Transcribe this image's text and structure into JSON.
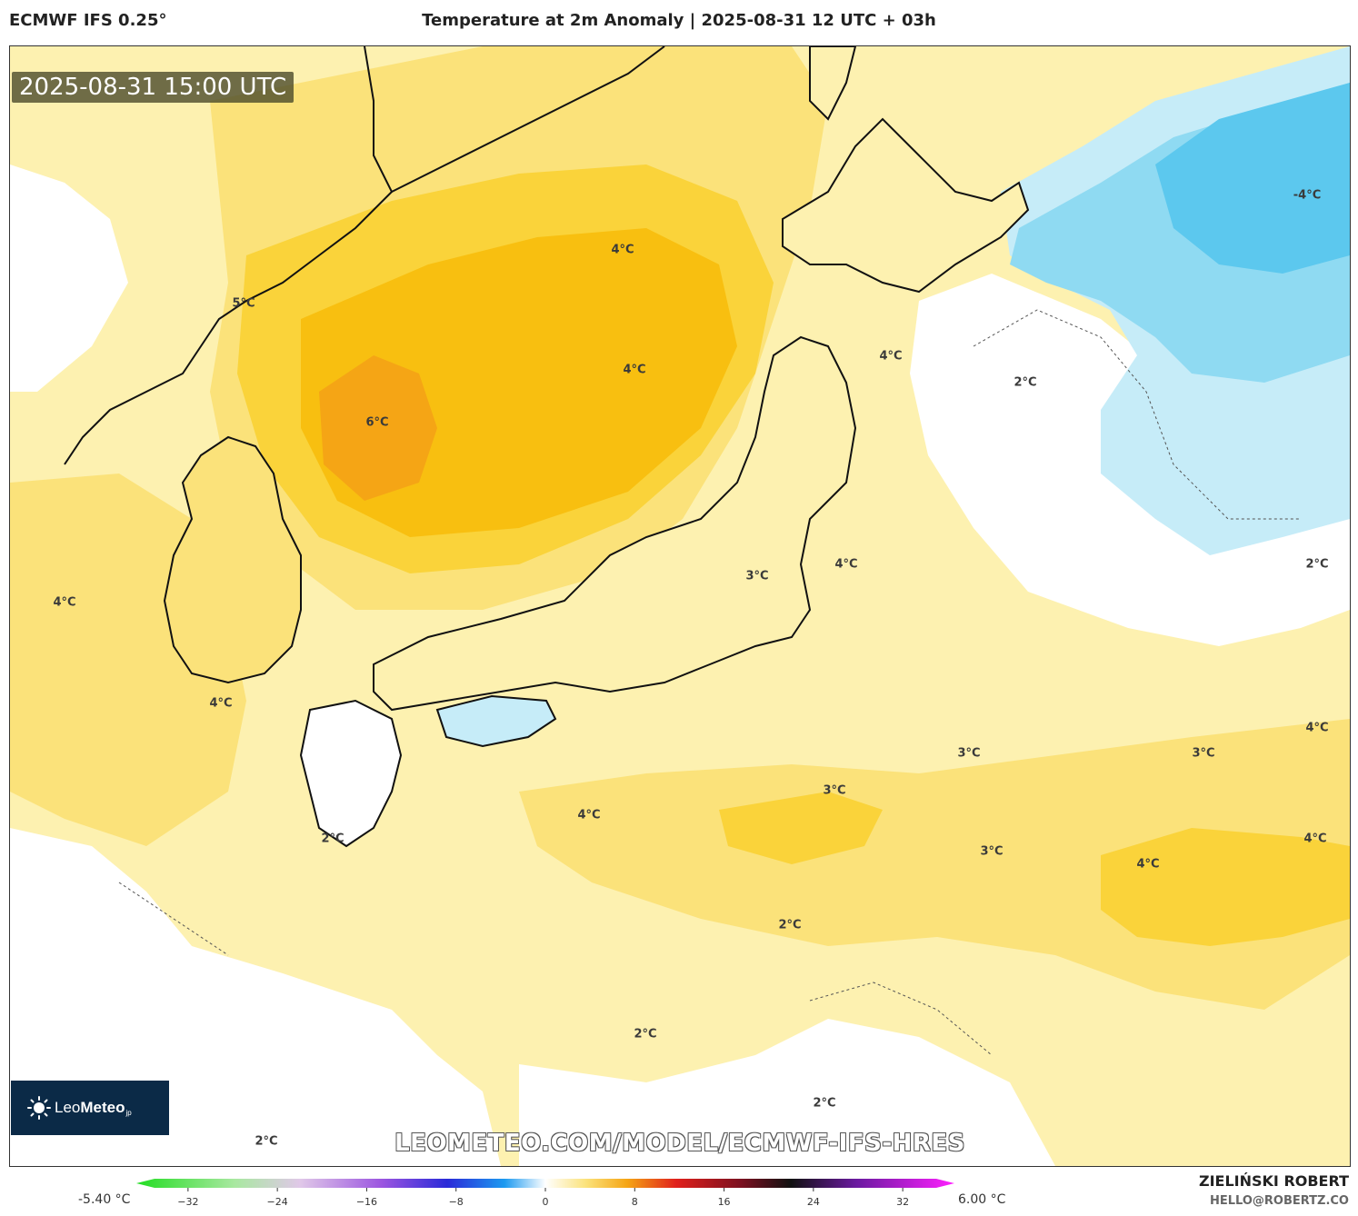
{
  "header": {
    "model": "ECMWF IFS 0.25°",
    "title": "Temperature at 2m Anomaly | 2025-08-31 12 UTC + 03h"
  },
  "map": {
    "valid_time": "2025-08-31 15:00 UTC",
    "watermark": "LEOMETEO.COM/MODEL/ECMWF-IFS-HRES",
    "contour_labels": [
      {
        "text": "4°C"
      },
      {
        "text": "4°C"
      },
      {
        "text": "6°C"
      },
      {
        "text": "5°C"
      },
      {
        "text": "4°C"
      },
      {
        "text": "2°C"
      },
      {
        "text": "-4°C"
      },
      {
        "text": "3°C"
      },
      {
        "text": "4°C"
      },
      {
        "text": "2°C"
      },
      {
        "text": "4°C"
      },
      {
        "text": "4°C"
      },
      {
        "text": "4°C"
      },
      {
        "text": "3°C"
      },
      {
        "text": "3°C"
      },
      {
        "text": "3°C"
      },
      {
        "text": "4°C"
      },
      {
        "text": "4°C"
      },
      {
        "text": "2°C"
      },
      {
        "text": "3°C"
      },
      {
        "text": "4°C"
      },
      {
        "text": "2°C"
      },
      {
        "text": "2°C"
      },
      {
        "text": "2°C"
      },
      {
        "text": "2°C"
      }
    ],
    "colors": {
      "warm_light": "#fdf1b0",
      "warm_mid": "#fbe27a",
      "warm_yellow": "#fad33a",
      "warm_orange": "#f8bf10",
      "warm_deep": "#f5a515",
      "neutral_white": "#ffffff",
      "cool_pale": "#c6ecf8",
      "cool_light": "#8fdaf2",
      "cool_mid": "#5cc8ee",
      "coastline": "#111111"
    }
  },
  "logo": {
    "text_regular": "Leo",
    "text_bold": "Meteo",
    "suffix": "jp"
  },
  "colorbar": {
    "min_label": "-5.40 °C",
    "max_label": "6.00 °C",
    "ticks": [
      "−32",
      "−24",
      "−16",
      "−8",
      "0",
      "8",
      "16",
      "24",
      "32"
    ],
    "tick_values": [
      -32,
      -24,
      -16,
      -8,
      0,
      8,
      16,
      24,
      32
    ],
    "range": [
      -35,
      35
    ]
  },
  "credit": {
    "name": "ZIELIŃSKI ROBERT",
    "email": "HELLO@ROBERTZ.CO"
  }
}
